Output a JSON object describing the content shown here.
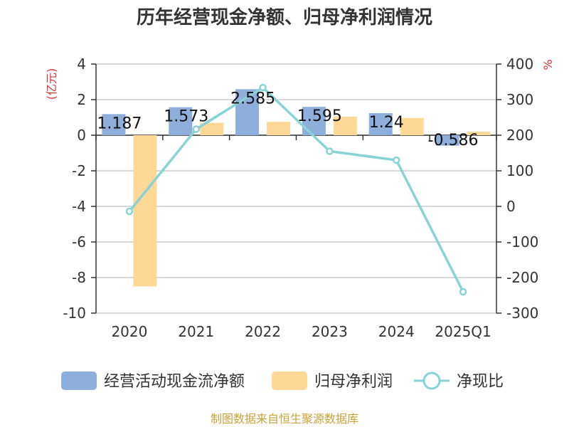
{
  "chart_data": {
    "type": "bar",
    "title": "历年经营现金净额、归母净利润情况",
    "categories": [
      "2020",
      "2021",
      "2022",
      "2023",
      "2024",
      "2025Q1"
    ],
    "series": [
      {
        "name": "经营活动现金流净额",
        "type": "bar",
        "axis": "left",
        "color": "#8eaedc",
        "values": [
          1.187,
          1.573,
          2.585,
          1.595,
          1.24,
          -0.586
        ],
        "labels": [
          "1.187",
          "1.573",
          "2.585",
          "1.595",
          "1.24",
          "-0.586"
        ]
      },
      {
        "name": "归母净利润",
        "type": "bar",
        "axis": "left",
        "color": "#fdd896",
        "values": [
          -8.5,
          0.7,
          0.75,
          1.05,
          0.97,
          0.2
        ]
      },
      {
        "name": "净现比",
        "type": "line",
        "axis": "right",
        "color": "#89d3d6",
        "values": [
          -14,
          217,
          334,
          155,
          130,
          -240
        ]
      }
    ],
    "y_left": {
      "label": "(亿元)",
      "ylim": [
        -10,
        4
      ],
      "ticks": [
        4,
        2,
        0,
        -2,
        -4,
        -6,
        -8,
        -10
      ]
    },
    "y_right": {
      "label": "%",
      "ylim": [
        -300,
        400
      ],
      "ticks": [
        400,
        300,
        200,
        100,
        0,
        -100,
        -200,
        -300
      ]
    },
    "source": "制图数据来自恒生聚源数据库"
  }
}
